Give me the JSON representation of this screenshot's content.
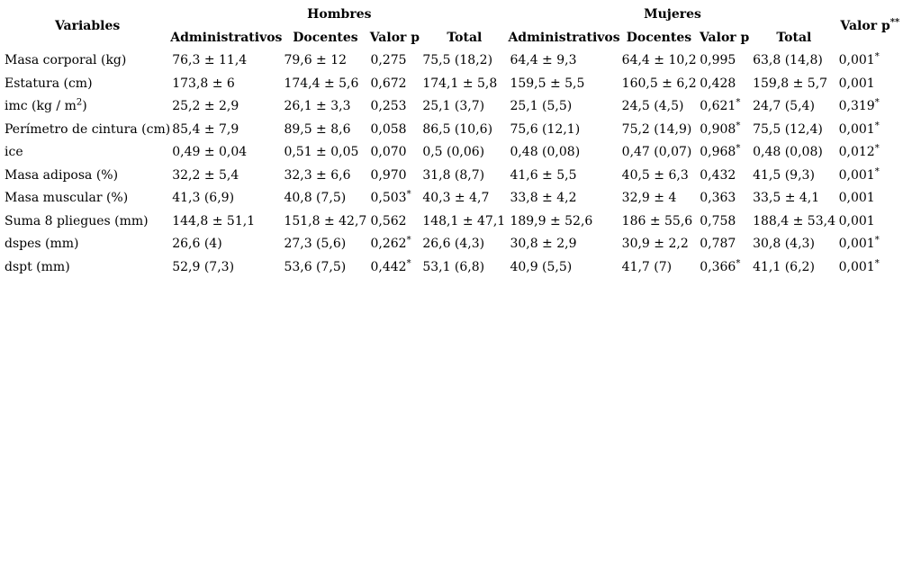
{
  "page": {
    "background": "#ffffff",
    "text_color": "#000000"
  },
  "table": {
    "header": {
      "variables": "Variables",
      "hombres": "Hombres",
      "mujeres": "Mujeres",
      "valor_p_label": "Valor p",
      "valor_p_stars": "**",
      "sub": [
        "Administrativos",
        "Docentes",
        "Valor p",
        "Total"
      ]
    },
    "rows": [
      {
        "variable": "Masa corporal (kg)",
        "cells": [
          "76,3 ± 11,4",
          "79,6 ± 12",
          "0,275",
          "75,5 (18,2)",
          "64,4 ± 9,3",
          "64,4 ± 10,2",
          "0,995",
          "63,8 (14,8)",
          "0,001*"
        ]
      },
      {
        "variable": "Estatura (cm)",
        "cells": [
          "173,8 ± 6",
          "174,4 ± 5,6",
          "0,672",
          "174,1 ± 5,8",
          "159,5 ± 5,5",
          "160,5 ± 6,2",
          "0,428",
          "159,8 ± 5,7",
          "0,001"
        ]
      },
      {
        "variable": "imc (kg / m²)",
        "cells": [
          "25,2 ± 2,9",
          "26,1 ± 3,3",
          "0,253",
          "25,1 (3,7)",
          "25,1 (5,5)",
          "24,5 (4,5)",
          "0,621*",
          "24,7 (5,4)",
          "0,319*"
        ]
      },
      {
        "variable": "Perímetro de cintura (cm)",
        "cells": [
          "85,4 ± 7,9",
          "89,5 ± 8,6",
          "0,058",
          "86,5 (10,6)",
          "75,6 (12,1)",
          "75,2 (14,9)",
          "0,908*",
          "75,5 (12,4)",
          "0,001*"
        ]
      },
      {
        "variable": "ice",
        "cells": [
          "0,49 ± 0,04",
          "0,51 ± 0,05",
          "0,070",
          "0,5 (0,06)",
          "0,48 (0,08)",
          "0,47 (0,07)",
          "0,968*",
          "0,48 (0,08)",
          "0,012*"
        ]
      },
      {
        "variable": "Masa adiposa (%)",
        "cells": [
          "32,2 ± 5,4",
          "32,3 ± 6,6",
          "0,970",
          "31,8 (8,7)",
          "41,6 ± 5,5",
          "40,5 ± 6,3",
          "0,432",
          "41,5 (9,3)",
          "0,001*"
        ]
      },
      {
        "variable": "Masa muscular (%)",
        "cells": [
          "41,3 (6,9)",
          "40,8 (7,5)",
          "0,503*",
          "40,3 ± 4,7",
          "33,8 ± 4,2",
          "32,9 ± 4",
          "0,363",
          "33,5 ± 4,1",
          "0,001"
        ]
      },
      {
        "variable": "Suma 8 pliegues (mm)",
        "cells": [
          "144,8 ± 51,1",
          "151,8 ± 42,7",
          "0,562",
          "148,1 ± 47,1",
          "189,9 ± 52,6",
          "186 ± 55,6",
          "0,758",
          "188,4 ± 53,4",
          "0,001"
        ]
      },
      {
        "variable": "dspes (mm)",
        "cells": [
          "26,6 (4)",
          "27,3 (5,6)",
          "0,262*",
          "26,6 (4,3)",
          "30,8 ± 2,9",
          "30,9 ± 2,2",
          "0,787",
          "30,8 (4,3)",
          "0,001*"
        ]
      },
      {
        "variable": "dspt (mm)",
        "cells": [
          "52,9 (7,3)",
          "53,6 (7,5)",
          "0,442*",
          "53,1 (6,8)",
          "40,9 (5,5)",
          "41,7 (7)",
          "0,366*",
          "41,1 (6,2)",
          "0,001*"
        ]
      }
    ]
  }
}
